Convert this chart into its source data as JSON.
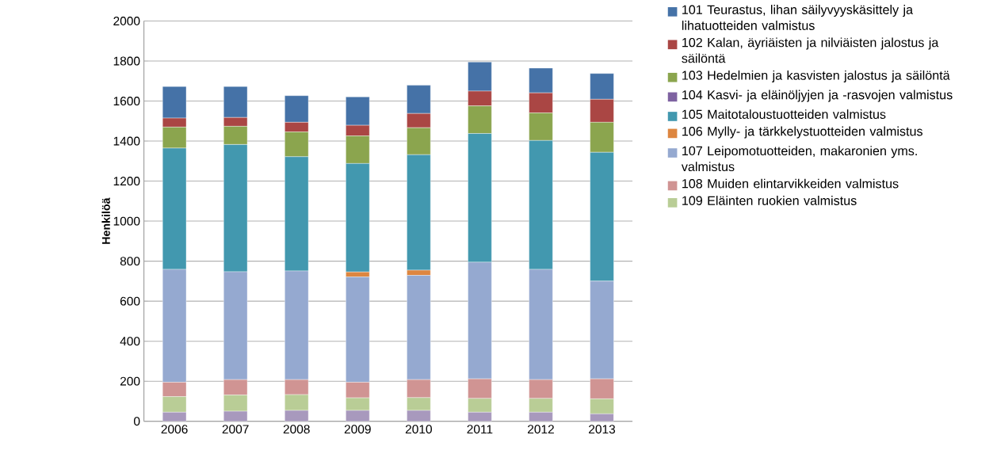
{
  "chart_data": {
    "type": "bar",
    "stacked": true,
    "ylabel": "Henkilöä",
    "categories": [
      "2006",
      "2007",
      "2008",
      "2009",
      "2010",
      "2011",
      "2012",
      "2013"
    ],
    "ylim": [
      0,
      2000
    ],
    "yticks": [
      0,
      200,
      400,
      600,
      800,
      1000,
      1200,
      1400,
      1600,
      1800,
      2000
    ],
    "grid": "y",
    "legend": "right",
    "series": [
      {
        "color": "#a899bd",
        "values": [
          45,
          50,
          54,
          54,
          54,
          45,
          45,
          37
        ]
      },
      {
        "name": "109 Eläinten ruokien valmistus",
        "color": "#b9cd96",
        "values": [
          78,
          81,
          79,
          63,
          64,
          69,
          69,
          75
        ]
      },
      {
        "name": "108 Muiden elintarvikkeiden valmistus",
        "color": "#d09493",
        "values": [
          72,
          77,
          75,
          78,
          90,
          98,
          94,
          100
        ]
      },
      {
        "name": "107 Leipomotuotteiden, makaronien yms. valmistus",
        "color": "#95a9d0",
        "values": [
          564,
          539,
          543,
          526,
          521,
          583,
          551,
          488
        ]
      },
      {
        "name": "106 Mylly- ja tärkkelystuotteiden valmistus",
        "color": "#dd8640",
        "values": [
          0,
          0,
          0,
          25,
          26,
          0,
          0,
          0
        ]
      },
      {
        "name": "105 Maitotaloustuotteiden valmistus",
        "color": "#4298af",
        "values": [
          606,
          636,
          571,
          542,
          577,
          643,
          644,
          644
        ]
      },
      {
        "name": "104 Kasvi- ja eläinöljyjen ja -rasvojen valmistus",
        "color": "#7e62a1",
        "values": [
          0,
          0,
          0,
          0,
          0,
          0,
          0,
          0
        ]
      },
      {
        "name": "103 Hedelmien ja kasvisten jalostus ja säilöntä",
        "color": "#8ba54e",
        "values": [
          105,
          91,
          124,
          138,
          135,
          138,
          138,
          150
        ]
      },
      {
        "name": "102 Kalan, äyriäisten ja nilviäisten jalostus ja säilöntä",
        "color": "#aa4644",
        "values": [
          45,
          44,
          48,
          53,
          71,
          74,
          100,
          115
        ]
      },
      {
        "name": "101 Teurastus, lihan säilyvyyskäsittely ja lihatuotteiden valmistus",
        "color": "#4572a7",
        "values": [
          158,
          155,
          133,
          142,
          141,
          145,
          124,
          129
        ]
      }
    ]
  }
}
